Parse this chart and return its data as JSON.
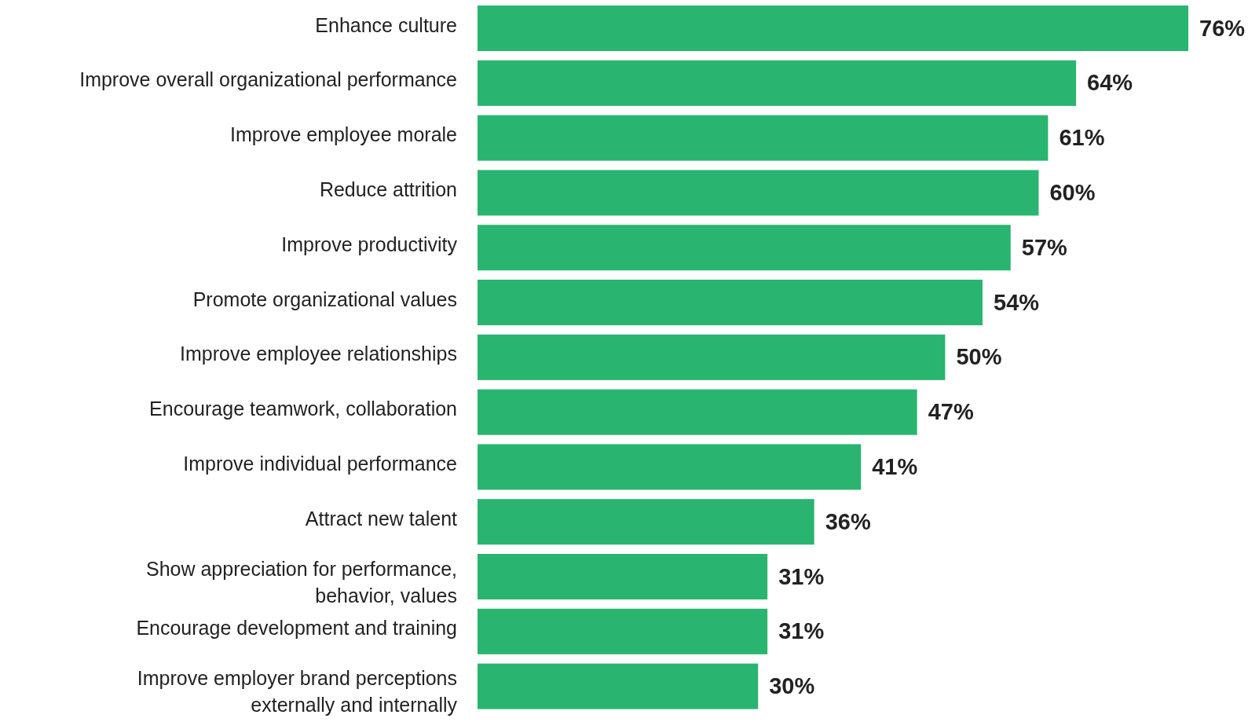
{
  "chart_data": {
    "type": "bar",
    "orientation": "horizontal",
    "color": "#29b56f",
    "categories": [
      "Enhance culture",
      "Improve overall organizational performance",
      "Improve employee morale",
      "Reduce attrition",
      "Improve productivity",
      "Promote organizational values",
      "Improve employee relationships",
      "Encourage teamwork, collaboration",
      "Improve individual performance",
      "Attract new talent",
      "Show appreciation for performance, behavior, values",
      "Encourage development and training",
      "Improve employer brand perceptions externally and internally"
    ],
    "values": [
      76,
      64,
      61,
      60,
      57,
      54,
      50,
      47,
      41,
      36,
      31,
      31,
      30
    ],
    "value_labels": [
      "76%",
      "64%",
      "61%",
      "60%",
      "57%",
      "54%",
      "50%",
      "47%",
      "41%",
      "36%",
      "31%",
      "31%",
      "30%"
    ]
  }
}
